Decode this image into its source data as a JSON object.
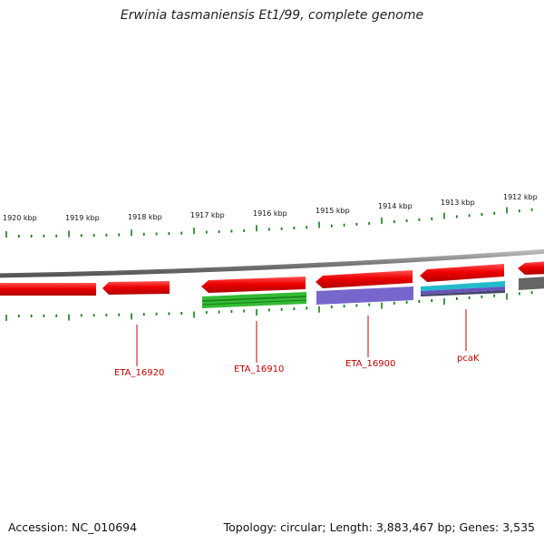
{
  "title": "Erwinia tasmaniensis Et1/99, complete genome",
  "footer": {
    "accession": "Accession: NC_010694",
    "topology": "Topology: circular; Length: 3,883,467 bp; Genes: 3,535"
  },
  "scale_labels": [
    "1920 kbp",
    "1919 kbp",
    "1918 kbp",
    "1917 kbp",
    "1916 kbp",
    "1915 kbp",
    "1914 kbp",
    "1913 kbp",
    "1912 kbp"
  ],
  "gene_labels": [
    "ETA_16920",
    "ETA_16910",
    "ETA_16900",
    "pcaK"
  ],
  "colors": {
    "cds": "#ee0000",
    "backbone": "#7a7a7a",
    "tick": "#1a7a1a",
    "label": "#c00000",
    "cog_green": "#33bb33",
    "cog_purple": "#7766cc",
    "cog_cyan": "#22bbcc",
    "cog_gray": "#666666"
  }
}
